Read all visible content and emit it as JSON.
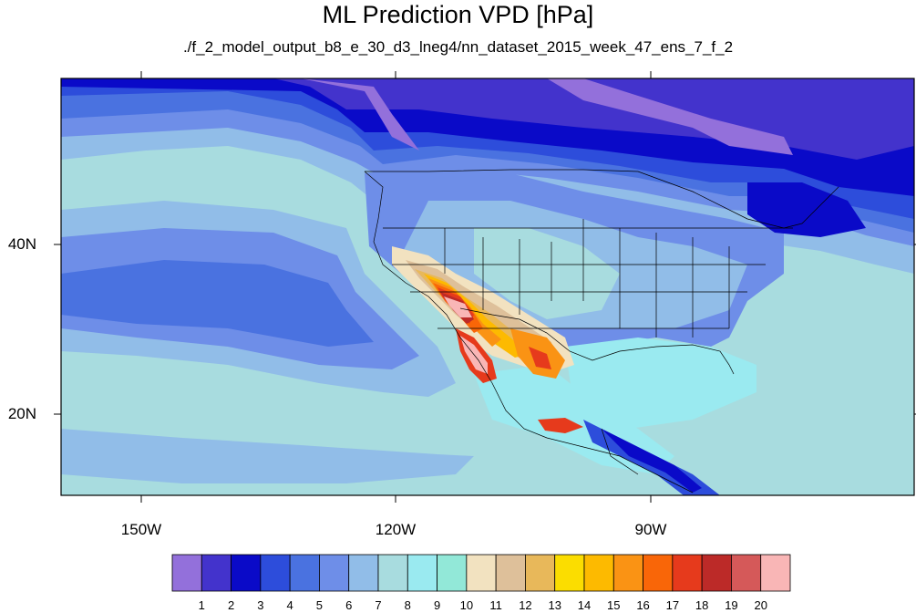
{
  "title": "ML Prediction VPD [hPa]",
  "subtitle": "./f_2_model_output_b8_e_30_d3_lneg4/nn_dataset_2015_week_47_ens_7_f_2",
  "map": {
    "projection": "cylindrical-equidistant",
    "lon_range": [
      -160,
      -62
    ],
    "lat_range": [
      11,
      60
    ],
    "lat_labels": [
      "40N",
      "20N"
    ],
    "lon_labels": [
      "150W",
      "120W",
      "90W"
    ],
    "layers": [
      "coastlines",
      "us-state-boundaries",
      "country-boundaries"
    ]
  },
  "colorbar": {
    "colors": [
      "#9370db",
      "#4333cc",
      "#0a0ac8",
      "#2d4ddb",
      "#4a72e0",
      "#6e8ee8",
      "#91bde8",
      "#a8dcdf",
      "#9aeaf0",
      "#92e8d8",
      "#f2e2c0",
      "#dec09a",
      "#e8b85a",
      "#fbdd00",
      "#fdba00",
      "#fa9314",
      "#f96608",
      "#e63a1c",
      "#bc2a28",
      "#d55959",
      "#f9b6b6"
    ],
    "labels": [
      "1",
      "2",
      "3",
      "4",
      "5",
      "6",
      "7",
      "8",
      "9",
      "10",
      "11",
      "12",
      "13",
      "14",
      "15",
      "16",
      "17",
      "18",
      "19",
      "20"
    ]
  }
}
